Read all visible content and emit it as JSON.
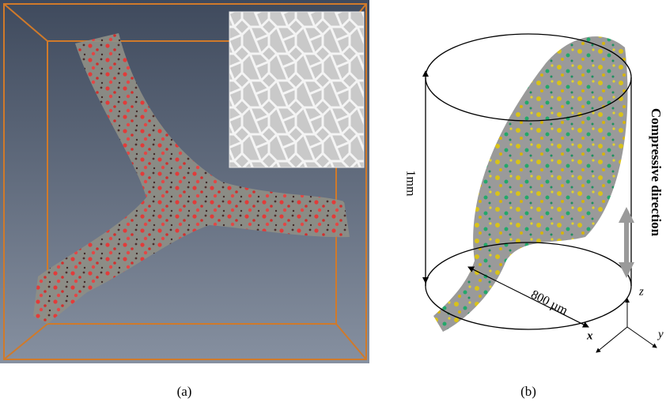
{
  "panels": [
    {
      "caption": "(a)"
    },
    {
      "caption": "(b)",
      "labels": {
        "length": "1mm",
        "diameter": "800 µm",
        "direction": "Compressive direction",
        "axis_x": "x",
        "axis_y": "y",
        "axis_z": "z"
      }
    }
  ]
}
